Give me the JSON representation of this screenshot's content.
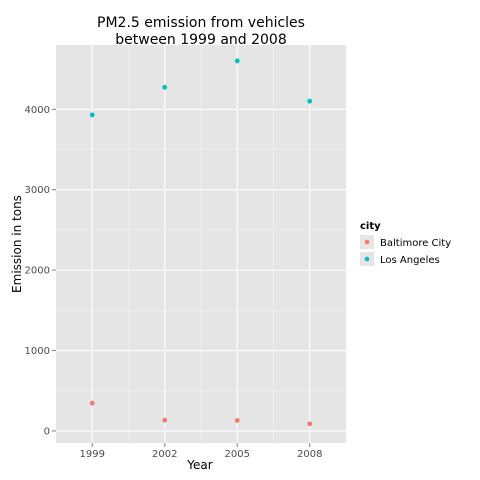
{
  "chart_data": {
    "type": "scatter",
    "title": "PM2.5 emission from vehicles between 1999 and 2008",
    "title_lines": [
      "PM2.5 emission from vehicles",
      "between 1999 and 2008"
    ],
    "xlabel": "Year",
    "ylabel": "Emission in tons",
    "x_categories": [
      "1999",
      "2002",
      "2005",
      "2008"
    ],
    "ylim": [
      -150,
      4800
    ],
    "y_ticks": [
      0,
      1000,
      2000,
      3000,
      4000
    ],
    "y_tick_labels": [
      "0",
      "1000",
      "2000",
      "3000",
      "4000"
    ],
    "grid": true,
    "legend": {
      "title": "city",
      "placement": "right"
    },
    "series": [
      {
        "name": "Baltimore City",
        "color": "#F8766D",
        "values": [
          346,
          134,
          130,
          88
        ]
      },
      {
        "name": "Los Angeles",
        "color": "#00BFC4",
        "values": [
          3931,
          4274,
          4602,
          4101
        ]
      }
    ]
  },
  "colors": {
    "panel": "#E5E5E5",
    "grid_major": "#FFFFFF",
    "grid_minor": "#F2F2F2"
  }
}
